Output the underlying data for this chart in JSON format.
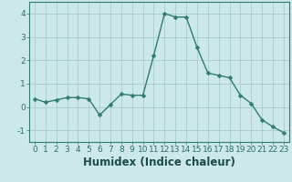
{
  "x": [
    0,
    1,
    2,
    3,
    4,
    5,
    6,
    7,
    8,
    9,
    10,
    11,
    12,
    13,
    14,
    15,
    16,
    17,
    18,
    19,
    20,
    21,
    22,
    23
  ],
  "y": [
    0.35,
    0.2,
    0.3,
    0.4,
    0.4,
    0.35,
    -0.35,
    0.1,
    0.55,
    0.5,
    0.5,
    2.2,
    4.0,
    3.85,
    3.85,
    2.55,
    1.45,
    1.35,
    1.25,
    0.5,
    0.15,
    -0.55,
    -0.85,
    -1.1
  ],
  "line_color": "#2e7d6e",
  "marker": "D",
  "marker_size": 2.5,
  "bg_color": "#cce8e8",
  "grid_color": "#a8cccc",
  "xlabel": "Humidex (Indice chaleur)",
  "xlim": [
    -0.5,
    23.5
  ],
  "ylim": [
    -1.5,
    4.5
  ],
  "yticks": [
    -1,
    0,
    1,
    2,
    3,
    4
  ],
  "xticks": [
    0,
    1,
    2,
    3,
    4,
    5,
    6,
    7,
    8,
    9,
    10,
    11,
    12,
    13,
    14,
    15,
    16,
    17,
    18,
    19,
    20,
    21,
    22,
    23
  ],
  "tick_fontsize": 6.5,
  "xlabel_fontsize": 8.5,
  "line_width": 1.0
}
